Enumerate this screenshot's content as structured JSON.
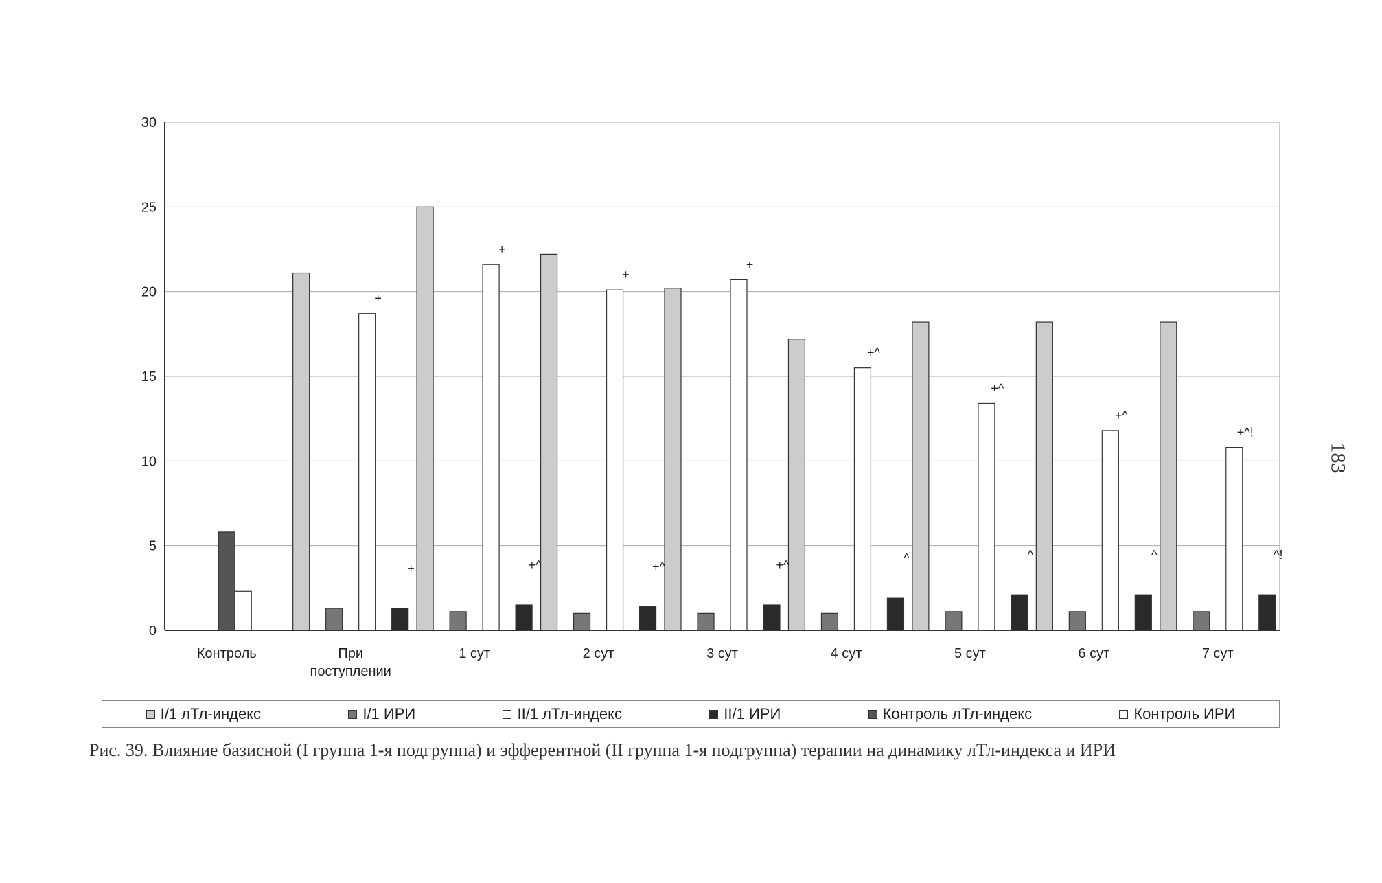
{
  "chart_data": {
    "type": "bar",
    "categories": [
      "Контроль",
      "При поступлении",
      "1 сут",
      "2 сут",
      "3 сут",
      "4 сут",
      "5 сут",
      "6 сут",
      "7 сут"
    ],
    "series": [
      {
        "name": "I/1 лТл-индекс",
        "color": "#cccccc",
        "values": [
          null,
          21.1,
          25.0,
          22.2,
          20.2,
          17.2,
          18.2,
          18.2,
          18.2
        ]
      },
      {
        "name": "I/1 ИРИ",
        "color": "#777777",
        "values": [
          null,
          1.3,
          1.1,
          1.0,
          1.0,
          1.0,
          1.1,
          1.1,
          1.1
        ]
      },
      {
        "name": "II/1 лТл-индекс",
        "color": "#ffffff",
        "values": [
          null,
          18.7,
          21.6,
          20.1,
          20.7,
          15.5,
          13.4,
          11.8,
          10.8
        ]
      },
      {
        "name": "II/1 ИРИ",
        "color": "#2a2a2a",
        "values": [
          null,
          1.3,
          1.5,
          1.4,
          1.5,
          1.9,
          2.1,
          2.1,
          2.1
        ]
      },
      {
        "name": "Контроль лТл-индекс",
        "color": "#555555",
        "values": [
          5.8,
          null,
          null,
          null,
          null,
          null,
          null,
          null,
          null
        ]
      },
      {
        "name": "Контроль ИРИ",
        "color": "#ffffff",
        "values": [
          2.3,
          null,
          null,
          null,
          null,
          null,
          null,
          null,
          null
        ]
      }
    ],
    "annotations": [
      {
        "category": 1,
        "series": 2,
        "text": "+"
      },
      {
        "category": 1,
        "series": 3,
        "text": "+"
      },
      {
        "category": 2,
        "series": 2,
        "text": "+"
      },
      {
        "category": 2,
        "series": 3,
        "text": "+^"
      },
      {
        "category": 3,
        "series": 2,
        "text": "+"
      },
      {
        "category": 3,
        "series": 3,
        "text": "+^"
      },
      {
        "category": 4,
        "series": 2,
        "text": "+"
      },
      {
        "category": 4,
        "series": 3,
        "text": "+^"
      },
      {
        "category": 5,
        "series": 2,
        "text": "+^"
      },
      {
        "category": 5,
        "series": 3,
        "text": "^"
      },
      {
        "category": 6,
        "series": 2,
        "text": "+^"
      },
      {
        "category": 6,
        "series": 3,
        "text": "^"
      },
      {
        "category": 7,
        "series": 2,
        "text": "+^"
      },
      {
        "category": 7,
        "series": 3,
        "text": "^"
      },
      {
        "category": 8,
        "series": 2,
        "text": "+^!"
      },
      {
        "category": 8,
        "series": 3,
        "text": "^!"
      }
    ],
    "ylim": [
      0,
      30
    ],
    "yticks": [
      0,
      5,
      10,
      15,
      20,
      25,
      30
    ],
    "grid": true,
    "legend_position": "bottom",
    "title": "",
    "xlabel": "",
    "ylabel": ""
  },
  "caption": "Рис. 39. Влияние базисной (I группа 1-я подгруппа) и эфферентной (II группа 1-я подгруппа) терапии на динамику лТл-индекса и ИРИ",
  "page_number": "183"
}
